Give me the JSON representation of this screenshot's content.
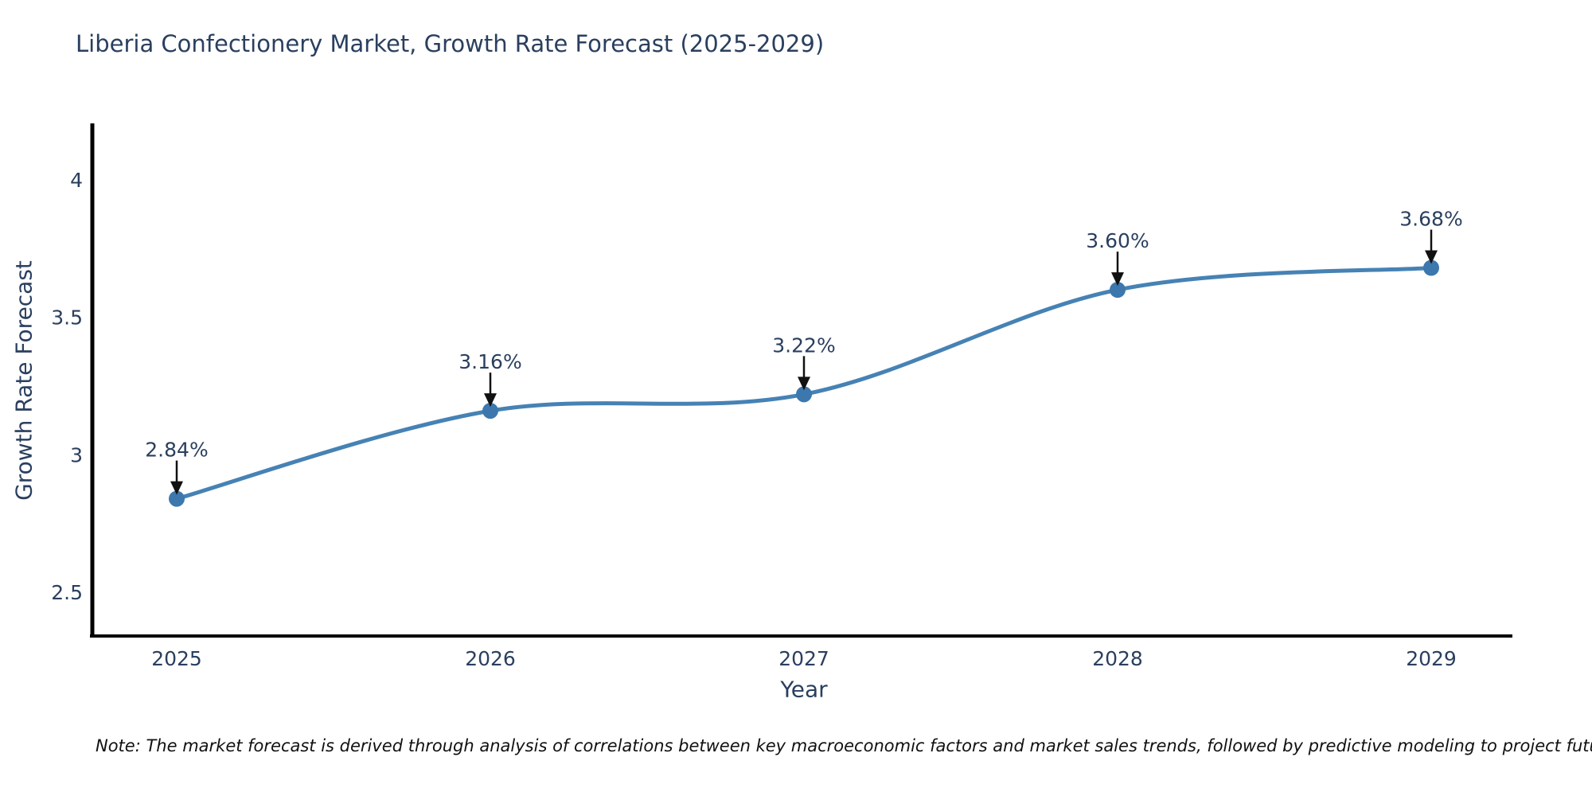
{
  "chart_data": {
    "type": "line",
    "title": "Liberia Confectionery Market, Growth Rate Forecast (2025-2029)",
    "xlabel": "Year",
    "ylabel": "Growth Rate Forecast",
    "x": [
      2025,
      2026,
      2027,
      2028,
      2029
    ],
    "y": [
      2.84,
      3.16,
      3.22,
      3.6,
      3.68
    ],
    "point_labels": [
      "2.84%",
      "3.16%",
      "3.22%",
      "3.60%",
      "3.68%"
    ],
    "xtick_labels": [
      "2025",
      "2026",
      "2027",
      "2028",
      "2029"
    ],
    "ytick_values": [
      2.5,
      3,
      3.5,
      4
    ],
    "ytick_labels": [
      "2.5",
      "3",
      "3.5",
      "4"
    ],
    "ylim": [
      2.34,
      4.2
    ],
    "line_shape": "spline",
    "grid": false,
    "legend": false,
    "colors": {
      "line": "#4682b4",
      "marker": "#3c78ad",
      "axis": "#000000",
      "text": "#2a3f5f",
      "annotation_arrow": "#111111"
    }
  },
  "note": {
    "text": "Note: The market forecast is derived through analysis of correlations between key macroeconomic factors and market sales trends, followed by predictive modeling to project future sales"
  }
}
